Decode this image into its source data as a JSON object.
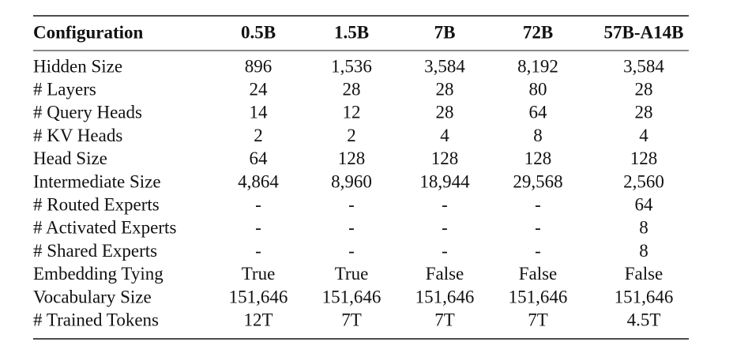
{
  "table": {
    "header": [
      "Configuration",
      "0.5B",
      "1.5B",
      "7B",
      "72B",
      "57B-A14B"
    ],
    "rows": [
      [
        "Hidden Size",
        "896",
        "1,536",
        "3,584",
        "8,192",
        "3,584"
      ],
      [
        "# Layers",
        "24",
        "28",
        "28",
        "80",
        "28"
      ],
      [
        "# Query Heads",
        "14",
        "12",
        "28",
        "64",
        "28"
      ],
      [
        "# KV Heads",
        "2",
        "2",
        "4",
        "8",
        "4"
      ],
      [
        "Head Size",
        "64",
        "128",
        "128",
        "128",
        "128"
      ],
      [
        "Intermediate Size",
        "4,864",
        "8,960",
        "18,944",
        "29,568",
        "2,560"
      ],
      [
        "# Routed Experts",
        "-",
        "-",
        "-",
        "-",
        "64"
      ],
      [
        "# Activated Experts",
        "-",
        "-",
        "-",
        "-",
        "8"
      ],
      [
        "# Shared Experts",
        "-",
        "-",
        "-",
        "-",
        "8"
      ],
      [
        "Embedding Tying",
        "True",
        "True",
        "False",
        "False",
        "False"
      ],
      [
        "Vocabulary Size",
        "151,646",
        "151,646",
        "151,646",
        "151,646",
        "151,646"
      ],
      [
        "# Trained Tokens",
        "12T",
        "7T",
        "7T",
        "7T",
        "4.5T"
      ]
    ]
  }
}
